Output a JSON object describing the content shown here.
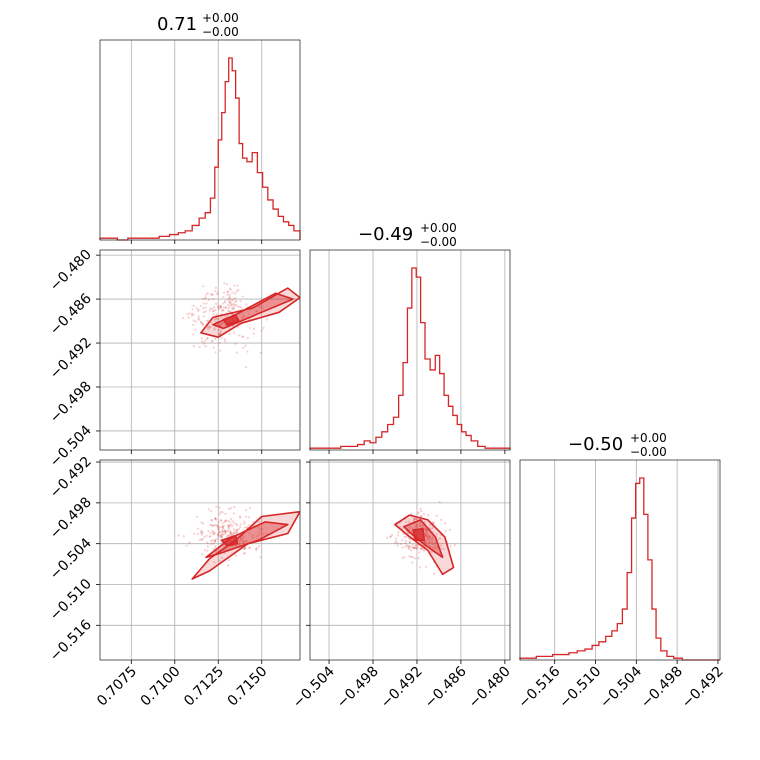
{
  "chart_data": {
    "type": "corner",
    "color": "#d62728",
    "parameters": [
      {
        "title": {
          "value": "0.71",
          "plus": "+0.00",
          "minus": "−0.00"
        },
        "ticks": [
          "0.7075",
          "0.7100",
          "0.7125",
          "0.7150"
        ],
        "tick_values": [
          0.7075,
          0.71,
          0.7125,
          0.715
        ],
        "range": [
          0.7057,
          0.7172
        ],
        "histogram": [
          {
            "x": 0.7058,
            "y": 0.01
          },
          {
            "x": 0.7064,
            "y": 0.01
          },
          {
            "x": 0.707,
            "y": 0.0
          },
          {
            "x": 0.7076,
            "y": 0.01
          },
          {
            "x": 0.7082,
            "y": 0.01
          },
          {
            "x": 0.7088,
            "y": 0.01
          },
          {
            "x": 0.7094,
            "y": 0.02
          },
          {
            "x": 0.71,
            "y": 0.03
          },
          {
            "x": 0.7104,
            "y": 0.04
          },
          {
            "x": 0.7108,
            "y": 0.05
          },
          {
            "x": 0.7112,
            "y": 0.08
          },
          {
            "x": 0.7116,
            "y": 0.12
          },
          {
            "x": 0.7119,
            "y": 0.15
          },
          {
            "x": 0.7122,
            "y": 0.23
          },
          {
            "x": 0.7124,
            "y": 0.4
          },
          {
            "x": 0.7126,
            "y": 0.55
          },
          {
            "x": 0.7128,
            "y": 0.7
          },
          {
            "x": 0.713,
            "y": 0.87
          },
          {
            "x": 0.7132,
            "y": 1.0
          },
          {
            "x": 0.7134,
            "y": 0.93
          },
          {
            "x": 0.7136,
            "y": 0.78
          },
          {
            "x": 0.7138,
            "y": 0.53
          },
          {
            "x": 0.714,
            "y": 0.45
          },
          {
            "x": 0.7143,
            "y": 0.43
          },
          {
            "x": 0.7146,
            "y": 0.48
          },
          {
            "x": 0.7149,
            "y": 0.37
          },
          {
            "x": 0.7152,
            "y": 0.29
          },
          {
            "x": 0.7155,
            "y": 0.22
          },
          {
            "x": 0.7158,
            "y": 0.17
          },
          {
            "x": 0.7161,
            "y": 0.13
          },
          {
            "x": 0.7164,
            "y": 0.1
          },
          {
            "x": 0.7167,
            "y": 0.08
          },
          {
            "x": 0.717,
            "y": 0.05
          }
        ]
      },
      {
        "title": {
          "value": "−0.49",
          "plus": "+0.00",
          "minus": "−0.00"
        },
        "ticks": [
          "−0.504",
          "−0.498",
          "−0.492",
          "−0.486",
          "−0.480"
        ],
        "tick_values": [
          -0.504,
          -0.498,
          -0.492,
          -0.486,
          -0.48
        ],
        "range": [
          -0.5066,
          -0.4793
        ],
        "histogram": [
          {
            "x": -0.5066,
            "y": 0.01
          },
          {
            "x": -0.5054,
            "y": 0.01
          },
          {
            "x": -0.5042,
            "y": 0.01
          },
          {
            "x": -0.503,
            "y": 0.01
          },
          {
            "x": -0.5018,
            "y": 0.02
          },
          {
            "x": -0.5006,
            "y": 0.02
          },
          {
            "x": -0.4996,
            "y": 0.03
          },
          {
            "x": -0.4988,
            "y": 0.05
          },
          {
            "x": -0.498,
            "y": 0.04
          },
          {
            "x": -0.4972,
            "y": 0.07
          },
          {
            "x": -0.4964,
            "y": 0.1
          },
          {
            "x": -0.4956,
            "y": 0.14
          },
          {
            "x": -0.4948,
            "y": 0.18
          },
          {
            "x": -0.4942,
            "y": 0.3
          },
          {
            "x": -0.4936,
            "y": 0.48
          },
          {
            "x": -0.493,
            "y": 0.78
          },
          {
            "x": -0.4924,
            "y": 1.0
          },
          {
            "x": -0.4918,
            "y": 0.95
          },
          {
            "x": -0.4912,
            "y": 0.7
          },
          {
            "x": -0.4906,
            "y": 0.5
          },
          {
            "x": -0.4898,
            "y": 0.44
          },
          {
            "x": -0.4892,
            "y": 0.52
          },
          {
            "x": -0.4886,
            "y": 0.42
          },
          {
            "x": -0.488,
            "y": 0.3
          },
          {
            "x": -0.4874,
            "y": 0.24
          },
          {
            "x": -0.4868,
            "y": 0.19
          },
          {
            "x": -0.4862,
            "y": 0.14
          },
          {
            "x": -0.4856,
            "y": 0.1
          },
          {
            "x": -0.485,
            "y": 0.08
          },
          {
            "x": -0.4842,
            "y": 0.05
          },
          {
            "x": -0.4832,
            "y": 0.02
          },
          {
            "x": -0.4822,
            "y": 0.01
          },
          {
            "x": -0.4808,
            "y": 0.01
          }
        ]
      },
      {
        "title": {
          "value": "−0.50",
          "plus": "+0.00",
          "minus": "−0.00"
        },
        "ticks": [
          "−0.516",
          "−0.510",
          "−0.504",
          "−0.498",
          "−0.492"
        ],
        "tick_values": [
          -0.516,
          -0.51,
          -0.504,
          -0.498,
          -0.492
        ],
        "range": [
          -0.5211,
          -0.4917
        ],
        "histogram": [
          {
            "x": -0.5205,
            "y": 0.01
          },
          {
            "x": -0.5193,
            "y": 0.01
          },
          {
            "x": -0.5181,
            "y": 0.02
          },
          {
            "x": -0.5169,
            "y": 0.02
          },
          {
            "x": -0.5157,
            "y": 0.03
          },
          {
            "x": -0.5145,
            "y": 0.03
          },
          {
            "x": -0.5133,
            "y": 0.04
          },
          {
            "x": -0.5121,
            "y": 0.05
          },
          {
            "x": -0.511,
            "y": 0.06
          },
          {
            "x": -0.51,
            "y": 0.08
          },
          {
            "x": -0.509,
            "y": 0.1
          },
          {
            "x": -0.508,
            "y": 0.13
          },
          {
            "x": -0.5072,
            "y": 0.16
          },
          {
            "x": -0.5064,
            "y": 0.2
          },
          {
            "x": -0.5057,
            "y": 0.28
          },
          {
            "x": -0.505,
            "y": 0.48
          },
          {
            "x": -0.5044,
            "y": 0.78
          },
          {
            "x": -0.5038,
            "y": 0.97
          },
          {
            "x": -0.5032,
            "y": 1.0
          },
          {
            "x": -0.5026,
            "y": 0.8
          },
          {
            "x": -0.502,
            "y": 0.55
          },
          {
            "x": -0.5014,
            "y": 0.28
          },
          {
            "x": -0.5008,
            "y": 0.12
          },
          {
            "x": -0.5,
            "y": 0.05
          },
          {
            "x": -0.499,
            "y": 0.02
          },
          {
            "x": -0.498,
            "y": 0.01
          },
          {
            "x": -0.4965,
            "y": 0.0
          }
        ]
      }
    ],
    "scatter_samples_note": "",
    "grid": true
  }
}
